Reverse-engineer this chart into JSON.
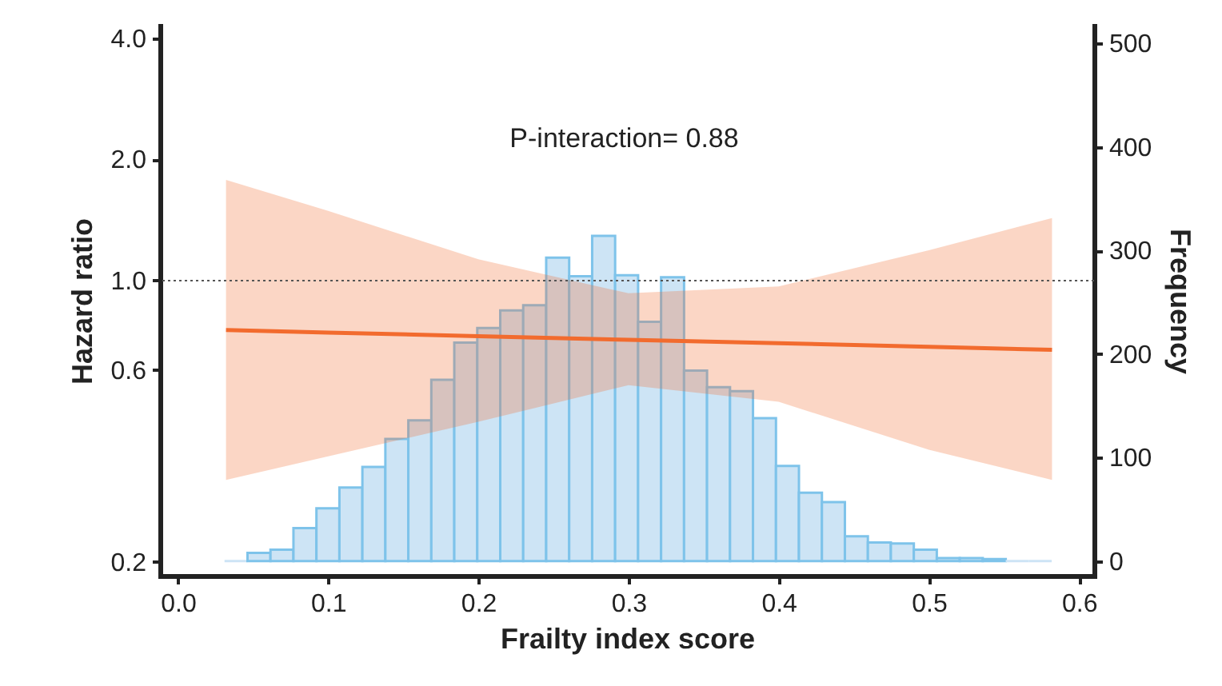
{
  "chart_data": {
    "type": "line",
    "xlabel": "Frailty index score",
    "ylabel": "Hazard ratio",
    "y2label": "Frequency",
    "annotations": [
      "P-interaction= 0.88"
    ],
    "xlim": [
      -0.012,
      0.61
    ],
    "xticks": [
      {
        "value": 0,
        "label": "0.0"
      },
      {
        "value": 0.1,
        "label": "0.1"
      },
      {
        "value": 0.2,
        "label": "0.2"
      },
      {
        "value": 0.3,
        "label": "0.3"
      },
      {
        "value": 0.4,
        "label": "0.4"
      },
      {
        "value": 0.5,
        "label": "0.5"
      },
      {
        "value": 0.6,
        "label": "0.6"
      }
    ],
    "log": "y",
    "ylim": [
      0.185,
      4.3
    ],
    "yticks": [
      {
        "value": 0.2,
        "label": "0.2"
      },
      {
        "value": 0.6,
        "label": "0.6"
      },
      {
        "value": 1,
        "label": "1.0"
      },
      {
        "value": 2,
        "label": "2.0"
      },
      {
        "value": 4,
        "label": "4.0"
      }
    ],
    "y2lim": [
      -14,
      517
    ],
    "y2ticks": [
      0,
      100,
      200,
      300,
      400,
      500
    ],
    "series": [
      {
        "type": "histogram",
        "axis": "y2",
        "color": "#cde4f5",
        "bins": [
          0.031,
          0.0463,
          0.0616,
          0.0769,
          0.0922,
          0.1075,
          0.1228,
          0.1381,
          0.1534,
          0.1687,
          0.184,
          0.1993,
          0.2146,
          0.2299,
          0.2452,
          0.2605,
          0.2758,
          0.2911,
          0.3064,
          0.3217,
          0.337,
          0.3523,
          0.3676,
          0.3829,
          0.3982,
          0.4135,
          0.4288,
          0.4441,
          0.4594,
          0.4747,
          0.49,
          0.5053,
          0.5206,
          0.5359,
          0.5512,
          0.5665,
          0.5818
        ],
        "values": [
          0,
          8,
          11,
          32,
          51,
          71,
          91,
          118,
          136,
          175,
          211,
          225,
          242,
          247,
          293,
          275,
          314,
          276,
          231,
          274,
          184,
          168,
          164,
          138,
          92,
          66,
          57,
          24,
          18,
          17,
          11,
          3,
          3,
          2,
          0,
          0
        ]
      },
      {
        "type": "line",
        "color": "#f26b2e",
        "x": [
          0.032,
          0.1,
          0.2,
          0.3,
          0.4,
          0.5,
          0.582
        ],
        "values": [
          0.754,
          0.743,
          0.728,
          0.713,
          0.699,
          0.685,
          0.673
        ],
        "lower": [
          0.32,
          0.366,
          0.446,
          0.55,
          0.5,
          0.38,
          0.32
        ],
        "upper": [
          1.78,
          1.49,
          1.13,
          0.93,
          0.967,
          1.19,
          1.43
        ]
      }
    ],
    "ref_lines": [
      {
        "axis": "y",
        "value": 1,
        "color": "#555555",
        "line_style": "dotted"
      }
    ],
    "grid": false
  }
}
